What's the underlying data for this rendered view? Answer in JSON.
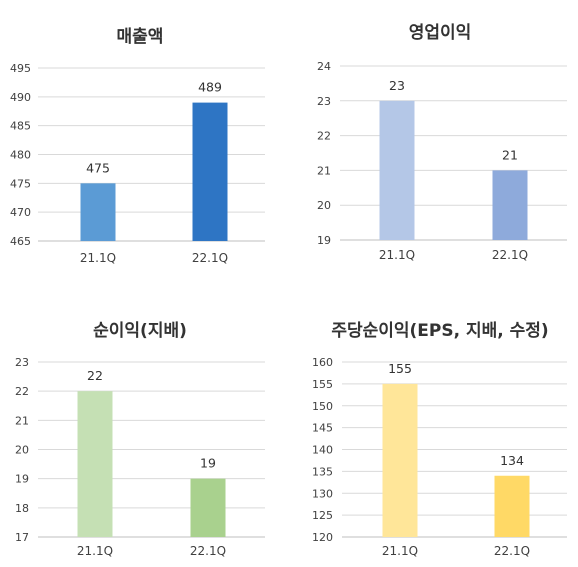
{
  "chart_data": [
    {
      "type": "bar",
      "title": "매출액",
      "categories": [
        "21.1Q",
        "22.1Q"
      ],
      "values": [
        475,
        489
      ],
      "ylim": [
        465,
        495
      ],
      "yticks": [
        465,
        470,
        475,
        480,
        485,
        490,
        495
      ],
      "grid": true,
      "colors": [
        "#5b9bd5",
        "#2e75c4"
      ]
    },
    {
      "type": "bar",
      "title": "영업이익",
      "categories": [
        "21.1Q",
        "22.1Q"
      ],
      "values": [
        23,
        21
      ],
      "ylim": [
        19,
        24
      ],
      "yticks": [
        19,
        20,
        21,
        22,
        23,
        24
      ],
      "grid": true,
      "colors": [
        "#b4c7e7",
        "#8eaadb"
      ]
    },
    {
      "type": "bar",
      "title": "순이익(지배)",
      "categories": [
        "21.1Q",
        "22.1Q"
      ],
      "values": [
        22,
        19
      ],
      "ylim": [
        17,
        23
      ],
      "yticks": [
        17,
        18,
        19,
        20,
        21,
        22,
        23
      ],
      "grid": true,
      "colors": [
        "#c5e0b4",
        "#a9d18e"
      ]
    },
    {
      "type": "bar",
      "title": "주당순이익(EPS, 지배, 수정)",
      "categories": [
        "21.1Q",
        "22.1Q"
      ],
      "values": [
        155,
        134
      ],
      "ylim": [
        120,
        160
      ],
      "yticks": [
        120,
        125,
        130,
        135,
        140,
        145,
        150,
        155,
        160
      ],
      "grid": true,
      "colors": [
        "#ffe699",
        "#ffd966"
      ]
    }
  ]
}
